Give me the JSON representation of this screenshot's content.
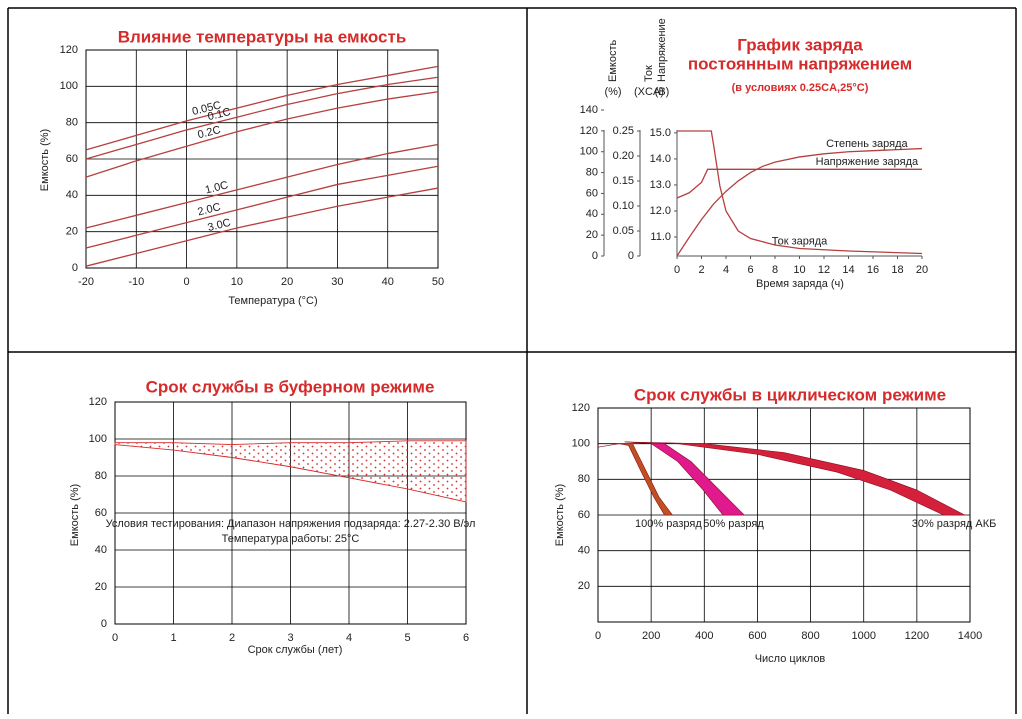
{
  "chart_data": [
    {
      "type": "line",
      "title": "Влияние температуры на емкость",
      "xlabel": "Температура (°C)",
      "ylabel": "Емкость (%)",
      "x": [
        -20,
        -10,
        0,
        10,
        20,
        30,
        40,
        50
      ],
      "xlim": [
        -20,
        50
      ],
      "xticks": [
        -20,
        -10,
        0,
        10,
        20,
        30,
        40,
        50
      ],
      "ylim": [
        0,
        120
      ],
      "yticks": [
        0,
        20,
        40,
        60,
        80,
        100,
        120
      ],
      "grid": true,
      "series": [
        {
          "name": "0.05C",
          "color": "#b5403f",
          "values": [
            65,
            73,
            81,
            88,
            95,
            101,
            106,
            111
          ]
        },
        {
          "name": "0.1C",
          "color": "#b5403f",
          "values": [
            60,
            68,
            76,
            83,
            90,
            96,
            101,
            105
          ]
        },
        {
          "name": "0.2C",
          "color": "#b5403f",
          "values": [
            50,
            59,
            67,
            75,
            82,
            88,
            93,
            97
          ]
        },
        {
          "name": "1.0C",
          "color": "#b5403f",
          "values": [
            22,
            29,
            36,
            43,
            50,
            57,
            63,
            68
          ]
        },
        {
          "name": "2.0C",
          "color": "#b5403f",
          "values": [
            11,
            18,
            25,
            32,
            39,
            46,
            51,
            56
          ]
        },
        {
          "name": "3.0C",
          "color": "#b5403f",
          "values": [
            1,
            8,
            15,
            22,
            28,
            34,
            39,
            44
          ]
        }
      ]
    },
    {
      "type": "line",
      "title": [
        "График заряда",
        "постоянным напряжением"
      ],
      "subtitle": "(в условиях 0.25CA,25°C)",
      "xlabel": "Время заряда (ч)",
      "xlim": [
        0,
        20
      ],
      "xticks": [
        0,
        2,
        4,
        6,
        8,
        10,
        12,
        14,
        16,
        18,
        20
      ],
      "grid": false,
      "ylabel": "Емкость",
      "yunit": "(%)",
      "ylim": [
        0,
        140
      ],
      "yticks": [
        0,
        20,
        40,
        60,
        80,
        100,
        120,
        140
      ],
      "y2label": "Ток",
      "y2unit": "(XCA)",
      "y2lim": [
        0,
        0.292
      ],
      "y2ticks": [
        0,
        0.05,
        {
          "value": 0.1,
          "label": "0.10"
        },
        0.15,
        {
          "value": 0.2,
          "label": "0.20"
        },
        0.25
      ],
      "y3label": "Напряжение",
      "y3unit": "(B)",
      "y3lim": [
        10.27,
        15.88
      ],
      "y3ticks": [
        {
          "value": 11,
          "label": "11.0"
        },
        {
          "value": 12,
          "label": "12.0"
        },
        {
          "value": 13,
          "label": "13.0"
        },
        {
          "value": 14,
          "label": "14.0"
        },
        {
          "value": 15,
          "label": "15.0"
        }
      ],
      "series": [
        {
          "name": "Степень заряда",
          "color": "#b5403f",
          "axis": "y",
          "x": [
            0,
            1,
            2,
            3,
            4,
            5,
            6,
            7,
            8,
            10,
            12,
            14,
            16,
            18,
            20
          ],
          "values": [
            0,
            18,
            35,
            50,
            62,
            72,
            80,
            86,
            90,
            95,
            98,
            100,
            101,
            102,
            103
          ]
        },
        {
          "name": "Напряжение заряда",
          "color": "#b5403f",
          "axis": "y3",
          "x": [
            0,
            1,
            2,
            2.5,
            20
          ],
          "values": [
            12.5,
            12.7,
            13.1,
            13.6,
            13.6
          ]
        },
        {
          "name": "Ток заряда",
          "color": "#b5403f",
          "axis": "y2",
          "x": [
            0,
            2.8,
            3,
            3.5,
            4,
            5,
            6,
            8,
            10,
            14,
            20
          ],
          "values": [
            0.25,
            0.25,
            0.22,
            0.14,
            0.09,
            0.05,
            0.035,
            0.022,
            0.015,
            0.01,
            0.005
          ]
        }
      ]
    },
    {
      "type": "band",
      "title": "Срок службы в буферном режиме",
      "xlabel": "Срок службы (лет)",
      "ylabel": "Емкость (%)",
      "xlim": [
        0,
        6
      ],
      "xticks": [
        0,
        1,
        2,
        3,
        4,
        5,
        6
      ],
      "ylim": [
        0,
        120
      ],
      "yticks": [
        0,
        20,
        40,
        60,
        80,
        100,
        120
      ],
      "grid": true,
      "fill": "dots",
      "annotation": [
        "Условия тестирования: Диапазон напряжения подзаряда: 2.27-2.30 В/эл",
        "Температура работы: 25°C"
      ],
      "series": [
        {
          "color": "#d62b2b",
          "upper": {
            "x": [
              0,
              1,
              2,
              3,
              4,
              5,
              6
            ],
            "values": [
              98,
              98,
              97,
              98,
              98,
              99,
              99
            ]
          },
          "lower": {
            "x": [
              0,
              1,
              2,
              3,
              4,
              5,
              6
            ],
            "values": [
              97,
              94,
              90,
              85,
              79,
              73,
              66
            ]
          }
        }
      ]
    },
    {
      "type": "band",
      "title": "Срок службы в циклическом режиме",
      "xlabel": "Число циклов",
      "ylabel": "Емкость (%)",
      "xlim": [
        0,
        1400
      ],
      "xticks": [
        0,
        200,
        400,
        600,
        800,
        1000,
        1200,
        1400
      ],
      "ylim": [
        0,
        120
      ],
      "yticks": [
        20,
        40,
        60,
        80,
        100,
        120
      ],
      "grid": true,
      "fill": "solid",
      "series": [
        {
          "name": "100% разряд",
          "color": "#c0501f",
          "upper": {
            "x": [
              0,
              80,
              130,
              180,
              230,
              280
            ],
            "values": [
              98,
              100,
              100,
              85,
              70,
              60
            ]
          },
          "lower": {
            "x": [
              0,
              80,
              115,
              160,
              210,
              250
            ],
            "values": [
              98,
              100,
              99,
              85,
              70,
              60
            ]
          }
        },
        {
          "name": "50% разряд",
          "color": "#e0198c",
          "upper": {
            "x": [
              100,
              250,
              350,
              450,
              550
            ],
            "values": [
              101,
              100,
              90,
              75,
              60
            ]
          },
          "lower": {
            "x": [
              100,
              200,
              300,
              390,
              470
            ],
            "values": [
              101,
              100,
              90,
              75,
              60
            ]
          }
        },
        {
          "name": "30% разряд АКБ",
          "color": "#d4203a",
          "upper": {
            "x": [
              100,
              400,
              700,
              1000,
              1200,
              1380
            ],
            "values": [
              101,
              100,
              95,
              85,
              74,
              60
            ]
          },
          "lower": {
            "x": [
              100,
              300,
              600,
              900,
              1100,
              1300
            ],
            "values": [
              101,
              100,
              94,
              84,
              74,
              60
            ]
          }
        }
      ]
    }
  ]
}
